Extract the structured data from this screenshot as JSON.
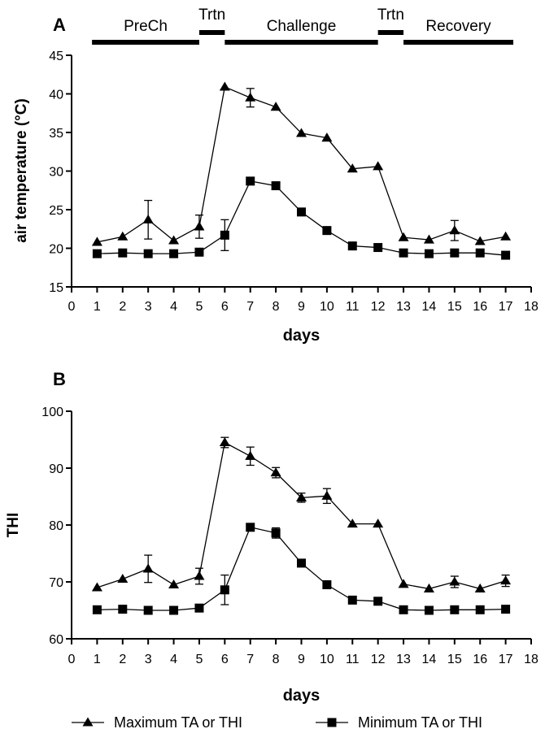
{
  "chart_data": [
    {
      "panel_label": "A",
      "type": "line",
      "xlabel": "days",
      "ylabel": "air temperature (°C)",
      "xlim": [
        0,
        18
      ],
      "ylim": [
        15,
        45
      ],
      "xticks": [
        0,
        1,
        2,
        3,
        4,
        5,
        6,
        7,
        8,
        9,
        10,
        11,
        12,
        13,
        14,
        15,
        16,
        17,
        18
      ],
      "yticks": [
        15,
        20,
        25,
        30,
        35,
        40,
        45
      ],
      "phases": [
        {
          "label": "PreCh",
          "start": 0.8,
          "end": 5.0
        },
        {
          "label": "Trtn",
          "start": 5.0,
          "end": 6.0,
          "raised": true
        },
        {
          "label": "Challenge",
          "start": 6.0,
          "end": 12.0
        },
        {
          "label": "Trtn",
          "start": 12.0,
          "end": 13.0,
          "raised": true
        },
        {
          "label": "Recovery",
          "start": 13.0,
          "end": 17.3
        }
      ],
      "series": [
        {
          "name": "Maximum TA or THI",
          "marker": "triangle",
          "x": [
            1,
            2,
            3,
            4,
            5,
            6,
            7,
            8,
            9,
            10,
            11,
            12,
            13,
            14,
            15,
            16,
            17
          ],
          "values": [
            20.8,
            21.5,
            23.7,
            21.0,
            22.8,
            40.9,
            39.5,
            38.3,
            34.9,
            34.3,
            30.3,
            30.6,
            21.4,
            21.1,
            22.3,
            20.9,
            21.5
          ],
          "errors": [
            0.3,
            0.3,
            2.5,
            0.3,
            1.5,
            0.4,
            1.2,
            0.4,
            0.4,
            0.4,
            0.3,
            0.3,
            0.3,
            0.3,
            1.3,
            0.3,
            0.3
          ]
        },
        {
          "name": "Minimum TA or THI",
          "marker": "square",
          "x": [
            1,
            2,
            3,
            4,
            5,
            6,
            7,
            8,
            9,
            10,
            11,
            12,
            13,
            14,
            15,
            16,
            17
          ],
          "values": [
            19.3,
            19.4,
            19.3,
            19.3,
            19.5,
            21.7,
            28.7,
            28.1,
            24.7,
            22.3,
            20.3,
            20.1,
            19.4,
            19.3,
            19.4,
            19.4,
            19.1
          ],
          "errors": [
            0.2,
            0.2,
            0.2,
            0.2,
            0.2,
            2.0,
            0.4,
            0.4,
            0.3,
            0.3,
            0.3,
            0.3,
            0.2,
            0.2,
            0.2,
            0.2,
            0.2
          ]
        }
      ]
    },
    {
      "panel_label": "B",
      "type": "line",
      "xlabel": "days",
      "ylabel": "THI",
      "xlim": [
        0,
        18
      ],
      "ylim": [
        60,
        100
      ],
      "xticks": [
        0,
        1,
        2,
        3,
        4,
        5,
        6,
        7,
        8,
        9,
        10,
        11,
        12,
        13,
        14,
        15,
        16,
        17,
        18
      ],
      "yticks": [
        60,
        70,
        80,
        90,
        100
      ],
      "series": [
        {
          "name": "Maximum TA or THI",
          "marker": "triangle",
          "x": [
            1,
            2,
            3,
            4,
            5,
            6,
            7,
            8,
            9,
            10,
            11,
            12,
            13,
            14,
            15,
            16,
            17
          ],
          "values": [
            69.0,
            70.5,
            72.3,
            69.5,
            71.0,
            94.5,
            92.1,
            89.2,
            84.8,
            85.1,
            80.2,
            80.2,
            69.6,
            68.8,
            70.0,
            68.8,
            70.2
          ],
          "errors": [
            0.4,
            0.4,
            2.4,
            0.4,
            1.4,
            0.9,
            1.6,
            0.9,
            0.8,
            1.3,
            0.4,
            0.4,
            0.4,
            0.4,
            1.0,
            0.4,
            1.0
          ]
        },
        {
          "name": "Minimum TA or THI",
          "marker": "square",
          "x": [
            1,
            2,
            3,
            4,
            5,
            6,
            7,
            8,
            9,
            10,
            11,
            12,
            13,
            14,
            15,
            16,
            17
          ],
          "values": [
            65.1,
            65.2,
            65.0,
            65.0,
            65.4,
            68.6,
            79.6,
            78.6,
            73.3,
            69.5,
            66.8,
            66.6,
            65.1,
            65.0,
            65.1,
            65.1,
            65.2
          ],
          "errors": [
            0.3,
            0.3,
            0.3,
            0.3,
            0.3,
            2.6,
            0.6,
            0.9,
            0.4,
            0.4,
            0.4,
            0.4,
            0.3,
            0.3,
            0.3,
            0.3,
            0.3
          ]
        }
      ]
    }
  ],
  "legend": [
    {
      "label": "Maximum TA or THI",
      "marker": "triangle"
    },
    {
      "label": "Minimum TA or THI",
      "marker": "square"
    }
  ]
}
